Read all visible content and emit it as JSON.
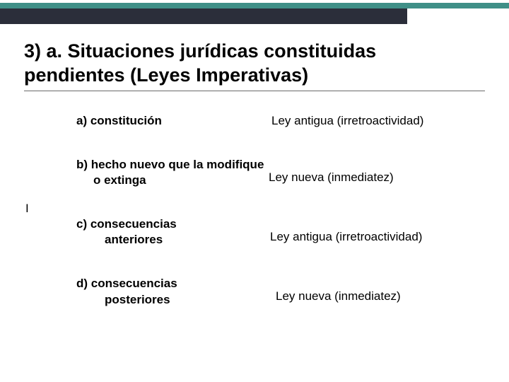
{
  "colors": {
    "teal_bar": "#3f8f87",
    "dark_bar": "#2b2e3a",
    "underline": "#6a6a6a",
    "text": "#000000",
    "background": "#ffffff"
  },
  "title": {
    "line1": "3) a. Situaciones jurídicas  constituidas",
    "line2": "pendientes (Leyes Imperativas)"
  },
  "stray": "I",
  "rows": [
    {
      "label_lines": [
        "a) constitución"
      ],
      "value": "Ley antigua (irretroactividad)"
    },
    {
      "label_lines": [
        "b) hecho nuevo que la modifique",
        "o  extinga"
      ],
      "value": "Ley nueva  (inmediatez)"
    },
    {
      "label_lines": [
        "c) consecuencias",
        "anteriores"
      ],
      "value": "Ley antigua (irretroactividad)"
    },
    {
      "label_lines": [
        "d) consecuencias",
        "posteriores"
      ],
      "value": "Ley nueva (inmediatez)"
    }
  ]
}
